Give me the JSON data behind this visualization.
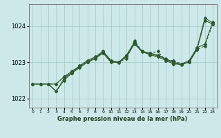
{
  "xlabel": "Graphe pression niveau de la mer (hPa)",
  "background_color": "#cce8e8",
  "grid_color": "#aacccc",
  "line_color": "#2d5a2d",
  "x": [
    0,
    1,
    2,
    3,
    4,
    5,
    6,
    7,
    8,
    9,
    10,
    11,
    12,
    13,
    14,
    15,
    16,
    17,
    18,
    19,
    20,
    21,
    22,
    23
  ],
  "series1": [
    1022.4,
    1022.4,
    1022.4,
    1022.4,
    1022.6,
    1022.75,
    1022.9,
    1023.05,
    1023.15,
    1023.3,
    1023.05,
    1023.0,
    1023.15,
    1023.5,
    1023.3,
    1023.25,
    1023.2,
    1023.1,
    1023.0,
    1022.95,
    1023.05,
    1023.4,
    1023.5,
    1024.1
  ],
  "series2": [
    1022.4,
    1022.4,
    1022.4,
    1022.2,
    1022.5,
    1022.7,
    1022.85,
    1023.0,
    1023.1,
    1023.25,
    1023.0,
    1023.0,
    1023.2,
    1023.55,
    1023.3,
    1023.2,
    1023.15,
    1023.05,
    1022.95,
    1022.95,
    1023.0,
    1023.35,
    1024.15,
    1024.05
  ],
  "series3": [
    1022.4,
    1022.4,
    1022.4,
    1022.4,
    1022.6,
    1022.7,
    1022.9,
    1023.0,
    1023.1,
    1023.3,
    1023.05,
    1023.0,
    1023.1,
    1023.6,
    1023.3,
    1023.25,
    1023.3,
    1023.05,
    1023.05,
    1022.95,
    1023.0,
    1023.35,
    1023.45,
    1024.05
  ],
  "series4": [
    1022.4,
    1022.4,
    1022.4,
    1022.2,
    1022.55,
    1022.72,
    1022.88,
    1023.02,
    1023.12,
    1023.28,
    1023.02,
    1022.98,
    1023.18,
    1023.52,
    1023.28,
    1023.22,
    1023.18,
    1023.08,
    1022.98,
    1022.92,
    1023.02,
    1023.38,
    1024.22,
    1024.08
  ],
  "ylim": [
    1021.75,
    1024.6
  ],
  "yticks": [
    1022.0,
    1023.0,
    1024.0
  ],
  "xticks": [
    0,
    1,
    2,
    3,
    4,
    5,
    6,
    7,
    8,
    9,
    10,
    11,
    12,
    13,
    14,
    15,
    16,
    17,
    18,
    19,
    20,
    21,
    22,
    23
  ]
}
